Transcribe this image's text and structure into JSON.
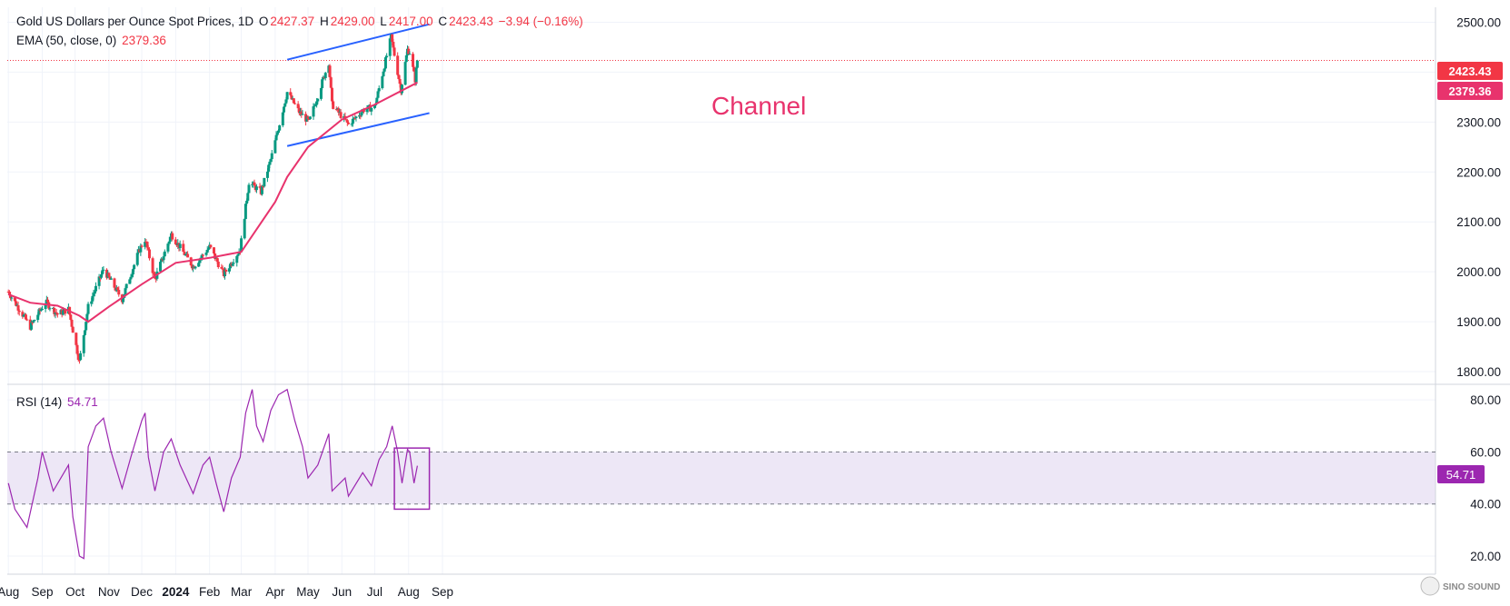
{
  "header": {
    "symbol_title": "Gold US Dollars per Ounce Spot Prices, 1D",
    "open_label": "O",
    "open": "2427.37",
    "high_label": "H",
    "high": "2429.00",
    "low_label": "L",
    "low": "2417.00",
    "close_label": "C",
    "close": "2423.43",
    "change": "−3.94 (−0.16%)",
    "ema_label": "EMA (50, close, 0)",
    "ema_value": "2379.36",
    "rsi_label": "RSI (14)",
    "rsi_value": "54.71"
  },
  "annotation": {
    "channel_label": "Channel"
  },
  "badges": {
    "price": "2423.43",
    "ema": "2379.36",
    "rsi": "54.71"
  },
  "watermark": "SINO SOUND",
  "colors": {
    "up": "#089981",
    "down": "#f23645",
    "ema": "#e8336d",
    "rsi": "#9c27b0",
    "channel": "#2962ff",
    "annotation": "#e8336d",
    "rsi_band": "#ede7f6",
    "grid": "#f0f3fa"
  },
  "chart_data": [
    {
      "type": "candlestick",
      "title": "Gold US Dollars per Ounce Spot Prices, 1D",
      "x_tick_labels": [
        "Aug",
        "Sep",
        "Oct",
        "Nov",
        "Dec",
        "2024",
        "Feb",
        "Mar",
        "Apr",
        "May",
        "Jun",
        "Jul",
        "Aug",
        "Sep"
      ],
      "y_tick_labels": [
        "2500.00",
        "2400.00",
        "2300.00",
        "2200.00",
        "2100.00",
        "2000.00",
        "1900.00",
        "1800.00"
      ],
      "ylim": [
        1780,
        2530
      ],
      "grid": true,
      "last_ohlc": {
        "open": 2427.37,
        "high": 2429.0,
        "low": 2417.0,
        "close": 2423.43
      },
      "price_path": [
        [
          "2023-08-01",
          1960
        ],
        [
          "2023-08-21",
          1890
        ],
        [
          "2023-09-04",
          1940
        ],
        [
          "2023-09-15",
          1915
        ],
        [
          "2023-09-25",
          1925
        ],
        [
          "2023-10-05",
          1820
        ],
        [
          "2023-10-13",
          1930
        ],
        [
          "2023-10-27",
          2005
        ],
        [
          "2023-11-13",
          1945
        ],
        [
          "2023-11-29",
          2045
        ],
        [
          "2023-12-04",
          2065
        ],
        [
          "2023-12-13",
          1985
        ],
        [
          "2023-12-28",
          2075
        ],
        [
          "2024-01-17",
          2010
        ],
        [
          "2024-02-01",
          2050
        ],
        [
          "2024-02-14",
          1995
        ],
        [
          "2024-02-29",
          2045
        ],
        [
          "2024-03-08",
          2180
        ],
        [
          "2024-03-19",
          2160
        ],
        [
          "2024-03-28",
          2225
        ],
        [
          "2024-04-12",
          2360
        ],
        [
          "2024-04-23",
          2320
        ],
        [
          "2024-05-02",
          2300
        ],
        [
          "2024-05-20",
          2420
        ],
        [
          "2024-05-23",
          2335
        ],
        [
          "2024-06-07",
          2295
        ],
        [
          "2024-06-21",
          2325
        ],
        [
          "2024-07-01",
          2330
        ],
        [
          "2024-07-16",
          2470
        ],
        [
          "2024-07-25",
          2365
        ],
        [
          "2024-07-31",
          2445
        ],
        [
          "2024-08-02",
          2440
        ],
        [
          "2024-08-07",
          2385
        ],
        [
          "2024-08-09",
          2423.43
        ]
      ],
      "series": [
        {
          "name": "EMA (50, close, 0)",
          "last_value": 2379.36,
          "points": [
            [
              "2023-08-01",
              1955
            ],
            [
              "2023-08-21",
              1938
            ],
            [
              "2023-09-15",
              1932
            ],
            [
              "2023-10-05",
              1912
            ],
            [
              "2023-10-13",
              1900
            ],
            [
              "2023-11-01",
              1930
            ],
            [
              "2023-12-01",
              1975
            ],
            [
              "2024-01-01",
              2018
            ],
            [
              "2024-02-01",
              2028
            ],
            [
              "2024-03-01",
              2040
            ],
            [
              "2024-04-01",
              2140
            ],
            [
              "2024-04-12",
              2190
            ],
            [
              "2024-05-01",
              2250
            ],
            [
              "2024-06-01",
              2305
            ],
            [
              "2024-07-01",
              2335
            ],
            [
              "2024-08-09",
              2379.36
            ]
          ]
        }
      ],
      "annotations": [
        {
          "text": "Channel",
          "upper_line": [
            [
              "2024-04-12",
              2425
            ],
            [
              "2024-08-20",
              2496
            ]
          ],
          "lower_line": [
            [
              "2024-04-12",
              2252
            ],
            [
              "2024-08-20",
              2318
            ]
          ]
        }
      ],
      "last_price_line": 2423.43
    },
    {
      "type": "line",
      "title": "RSI (14)",
      "y_tick_labels": [
        "80.00",
        "60.00",
        "40.00",
        "20.00"
      ],
      "ylim": [
        13,
        86
      ],
      "band": [
        40,
        60
      ],
      "last_value": 54.71,
      "series": [
        {
          "name": "RSI (14)",
          "points": [
            [
              "2023-08-01",
              48
            ],
            [
              "2023-08-07",
              38
            ],
            [
              "2023-08-18",
              31
            ],
            [
              "2023-08-28",
              50
            ],
            [
              "2023-09-01",
              60
            ],
            [
              "2023-09-11",
              45
            ],
            [
              "2023-09-18",
              50
            ],
            [
              "2023-09-25",
              55
            ],
            [
              "2023-09-29",
              35
            ],
            [
              "2023-10-05",
              20
            ],
            [
              "2023-10-09",
              19
            ],
            [
              "2023-10-13",
              62
            ],
            [
              "2023-10-20",
              70
            ],
            [
              "2023-10-27",
              73
            ],
            [
              "2023-11-03",
              60
            ],
            [
              "2023-11-13",
              46
            ],
            [
              "2023-11-21",
              58
            ],
            [
              "2023-12-01",
              72
            ],
            [
              "2023-12-04",
              75
            ],
            [
              "2023-12-07",
              58
            ],
            [
              "2023-12-13",
              45
            ],
            [
              "2023-12-21",
              60
            ],
            [
              "2023-12-28",
              65
            ],
            [
              "2024-01-05",
              55
            ],
            [
              "2024-01-17",
              44
            ],
            [
              "2024-01-26",
              55
            ],
            [
              "2024-02-01",
              58
            ],
            [
              "2024-02-07",
              48
            ],
            [
              "2024-02-14",
              37
            ],
            [
              "2024-02-21",
              50
            ],
            [
              "2024-02-29",
              58
            ],
            [
              "2024-03-05",
              75
            ],
            [
              "2024-03-11",
              84
            ],
            [
              "2024-03-15",
              70
            ],
            [
              "2024-03-21",
              64
            ],
            [
              "2024-03-28",
              76
            ],
            [
              "2024-04-04",
              82
            ],
            [
              "2024-04-12",
              84
            ],
            [
              "2024-04-19",
              72
            ],
            [
              "2024-04-26",
              62
            ],
            [
              "2024-05-01",
              50
            ],
            [
              "2024-05-10",
              55
            ],
            [
              "2024-05-20",
              67
            ],
            [
              "2024-05-23",
              45
            ],
            [
              "2024-06-04",
              50
            ],
            [
              "2024-06-07",
              43
            ],
            [
              "2024-06-20",
              52
            ],
            [
              "2024-06-28",
              47
            ],
            [
              "2024-07-05",
              57
            ],
            [
              "2024-07-12",
              62
            ],
            [
              "2024-07-17",
              70
            ],
            [
              "2024-07-22",
              60
            ],
            [
              "2024-07-26",
              48
            ],
            [
              "2024-07-31",
              61
            ],
            [
              "2024-08-02",
              60
            ],
            [
              "2024-08-06",
              48
            ],
            [
              "2024-08-09",
              54.71
            ]
          ]
        }
      ],
      "annotations": [
        {
          "shape": "rectangle",
          "x": [
            "2024-07-19",
            "2024-08-20"
          ],
          "y": [
            38,
            61.5
          ]
        }
      ]
    }
  ]
}
